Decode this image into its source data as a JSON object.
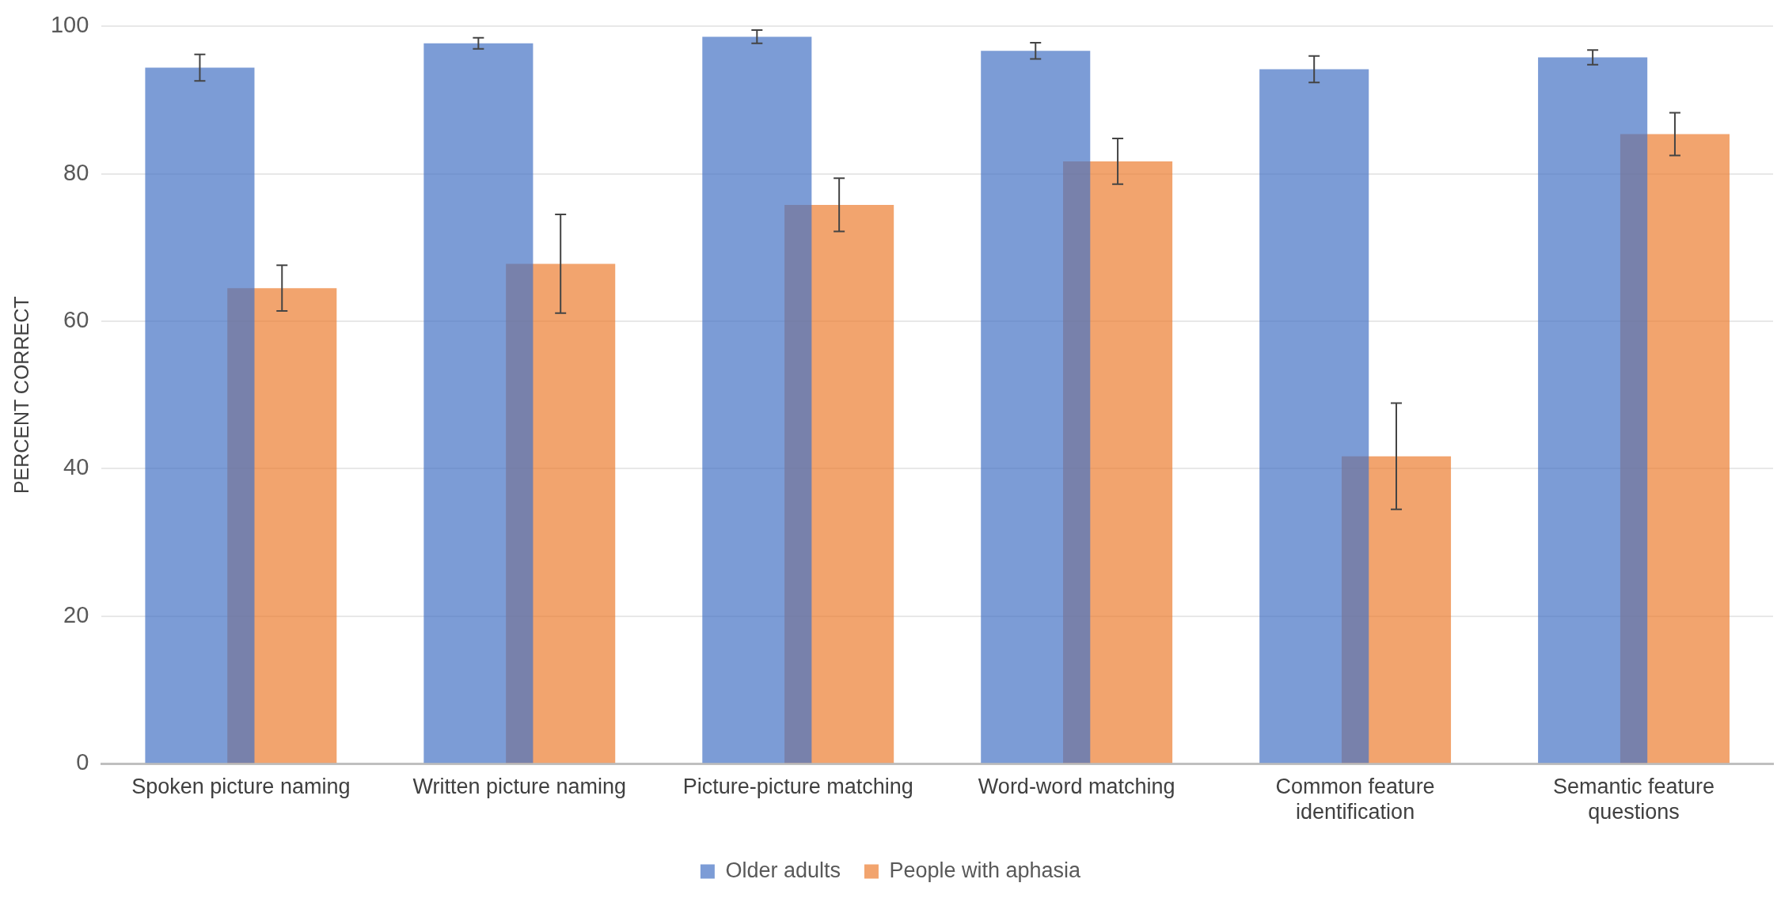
{
  "chart_data": {
    "type": "bar",
    "ylabel": "PERCENT CORRECT",
    "categories": [
      "Spoken picture naming",
      "Written picture naming",
      "Picture-picture matching",
      "Word-word matching",
      "Common feature identification",
      "Semantic feature questions"
    ],
    "series": [
      {
        "name": "Older adults",
        "color": "#4472c4",
        "values": [
          94.4,
          97.7,
          98.6,
          96.7,
          94.2,
          95.8
        ],
        "errors": [
          1.8,
          0.75,
          0.9,
          1.1,
          1.8,
          1.0
        ]
      },
      {
        "name": "People with aphasia",
        "color": "#ed7d31",
        "values": [
          64.5,
          67.8,
          75.8,
          81.7,
          41.7,
          85.4
        ],
        "errors": [
          3.1,
          6.7,
          3.6,
          3.1,
          7.2,
          2.9
        ]
      }
    ],
    "ylim": [
      0,
      100
    ],
    "yticks": [
      0,
      20,
      40,
      60,
      80,
      100
    ],
    "grid": "y",
    "legend": "bottom"
  }
}
